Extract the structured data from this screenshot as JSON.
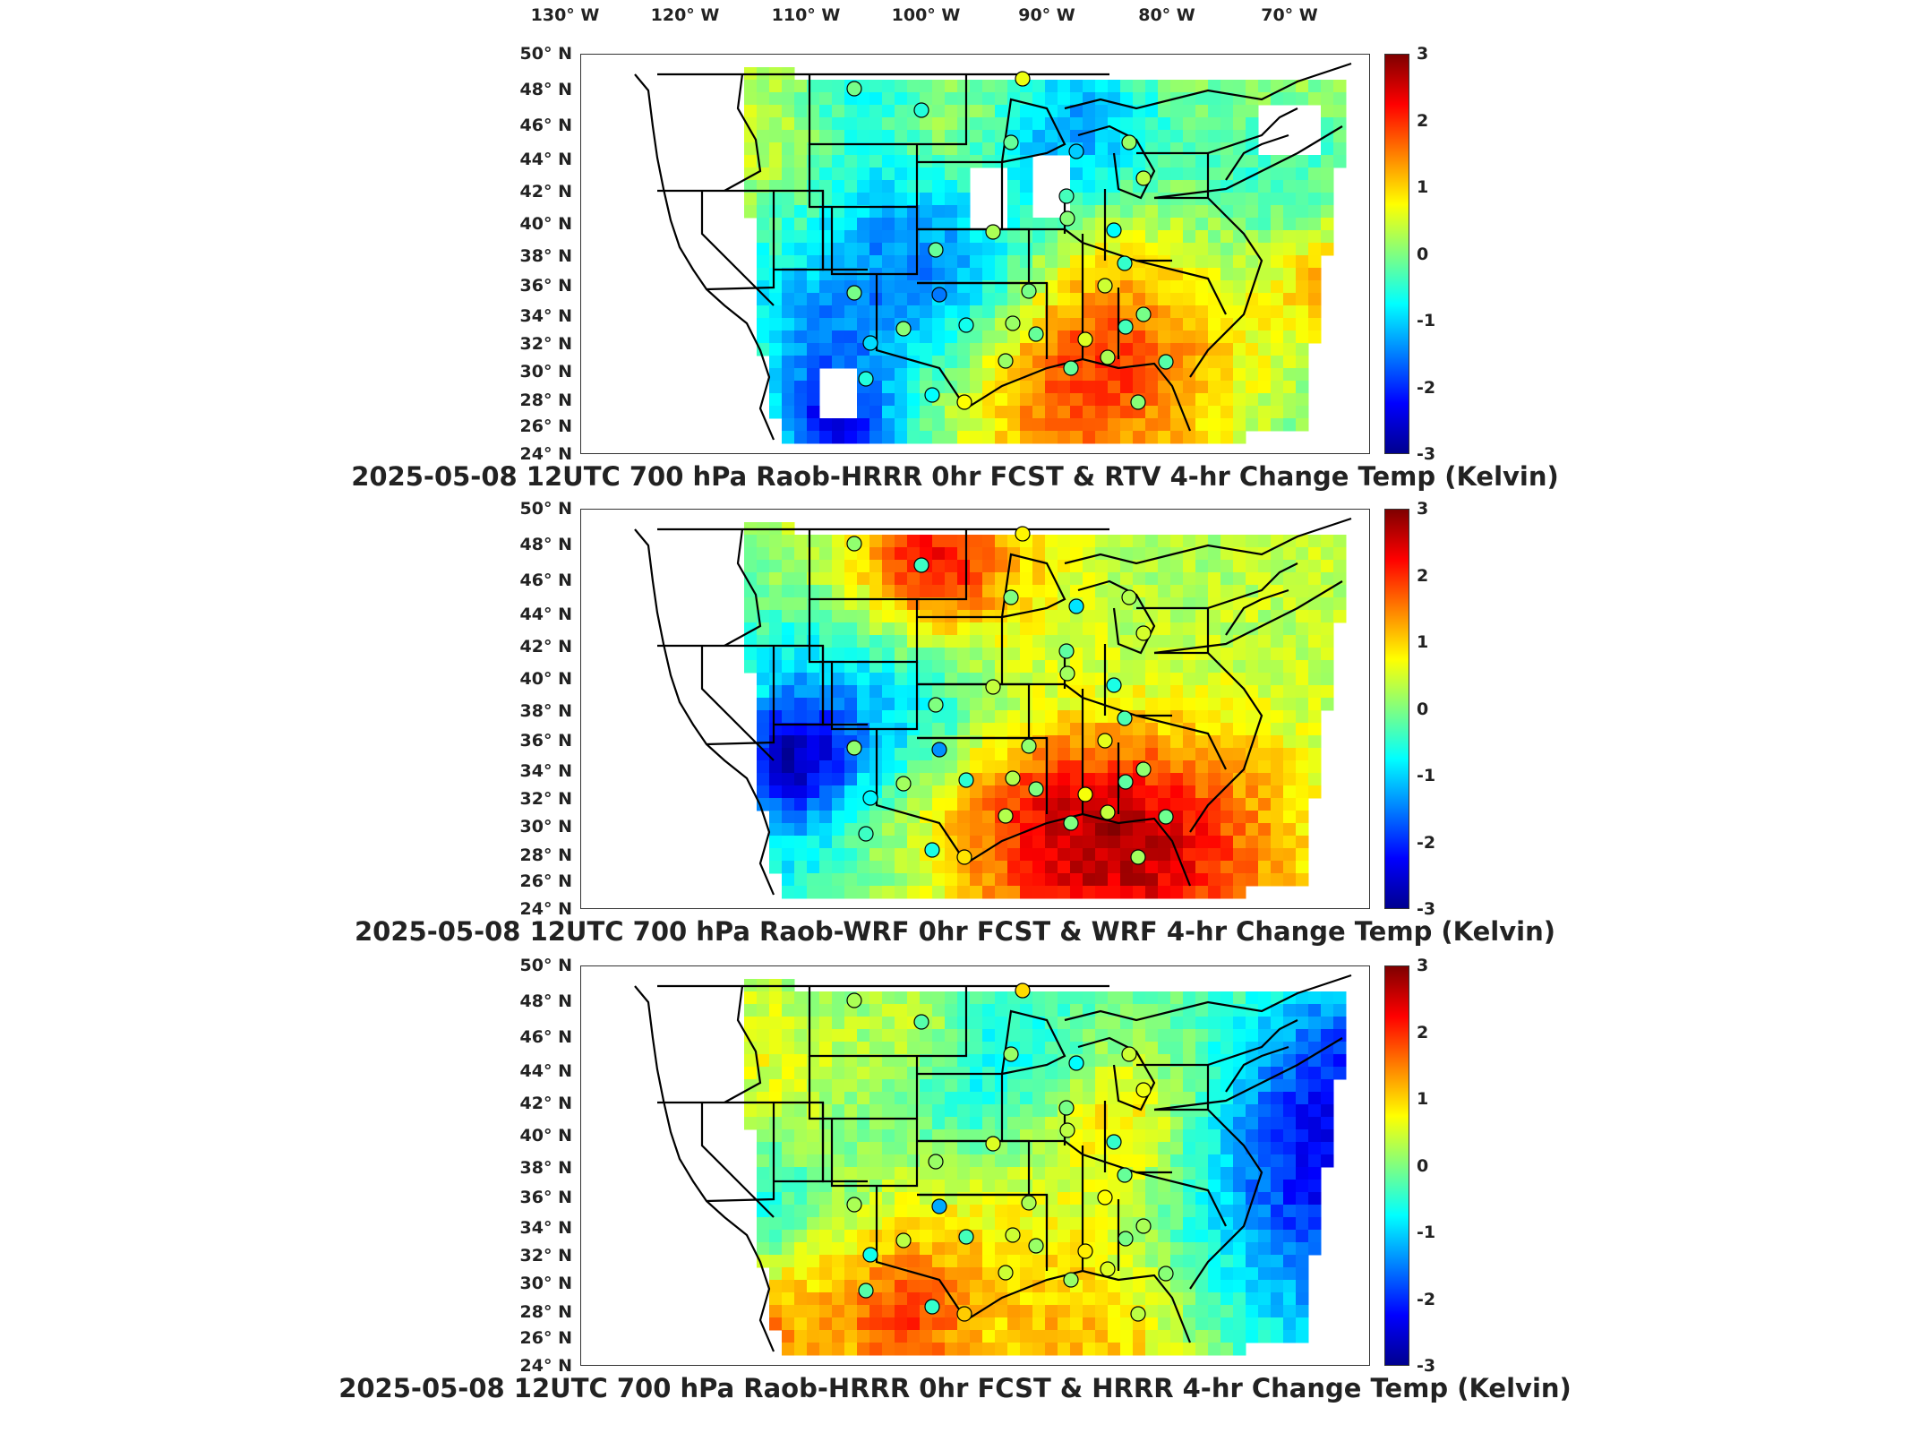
{
  "lon_labels": [
    "130° W",
    "120° W",
    "110° W",
    "100° W",
    "90° W",
    "80° W",
    "70° W"
  ],
  "lat_labels": [
    "50° N",
    "48° N",
    "46° N",
    "44° N",
    "42° N",
    "40° N",
    "38° N",
    "36° N",
    "34° N",
    "32° N",
    "30° N",
    "28° N",
    "26° N",
    "24° N"
  ],
  "colorbar": {
    "ticks": [
      "3",
      "2",
      "1",
      "0",
      "-1",
      "-2",
      "-3"
    ],
    "colors": [
      "#7f0000",
      "#ff0000",
      "#ff8000",
      "#ffff00",
      "#80ff80",
      "#00ffff",
      "#0080ff",
      "#0000ff",
      "#00008f"
    ]
  },
  "panels": [
    {
      "title": "2025-05-08 12UTC 700 hPa Raob-HRRR 0hr FCST & RTV 4-hr Change Temp (Kelvin)",
      "field_seed": 1,
      "has_gaps": true
    },
    {
      "title": "2025-05-08 12UTC 700 hPa Raob-WRF 0hr FCST & WRF 4-hr Change Temp (Kelvin)",
      "field_seed": 2,
      "has_gaps": false
    },
    {
      "title": "2025-05-08 12UTC 700 hPa Raob-HRRR 0hr FCST & HRRR 4-hr Change Temp (Kelvin)",
      "field_seed": 3,
      "has_gaps": false
    }
  ],
  "raob_station_values_kelvin": [
    0.1,
    -0.4,
    0.8,
    0.0,
    -0.9,
    0.3,
    0.5,
    -0.2,
    0.2,
    -0.6,
    0.0,
    0.4,
    -0.3,
    0.6,
    -1.4,
    0.1,
    0.3,
    -0.5,
    0.2,
    -0.8,
    0.0,
    0.7,
    -0.2,
    0.1,
    0.4,
    -0.1,
    0.0,
    0.3,
    -0.6,
    0.9,
    0.2,
    -0.4,
    0.1
  ]
}
